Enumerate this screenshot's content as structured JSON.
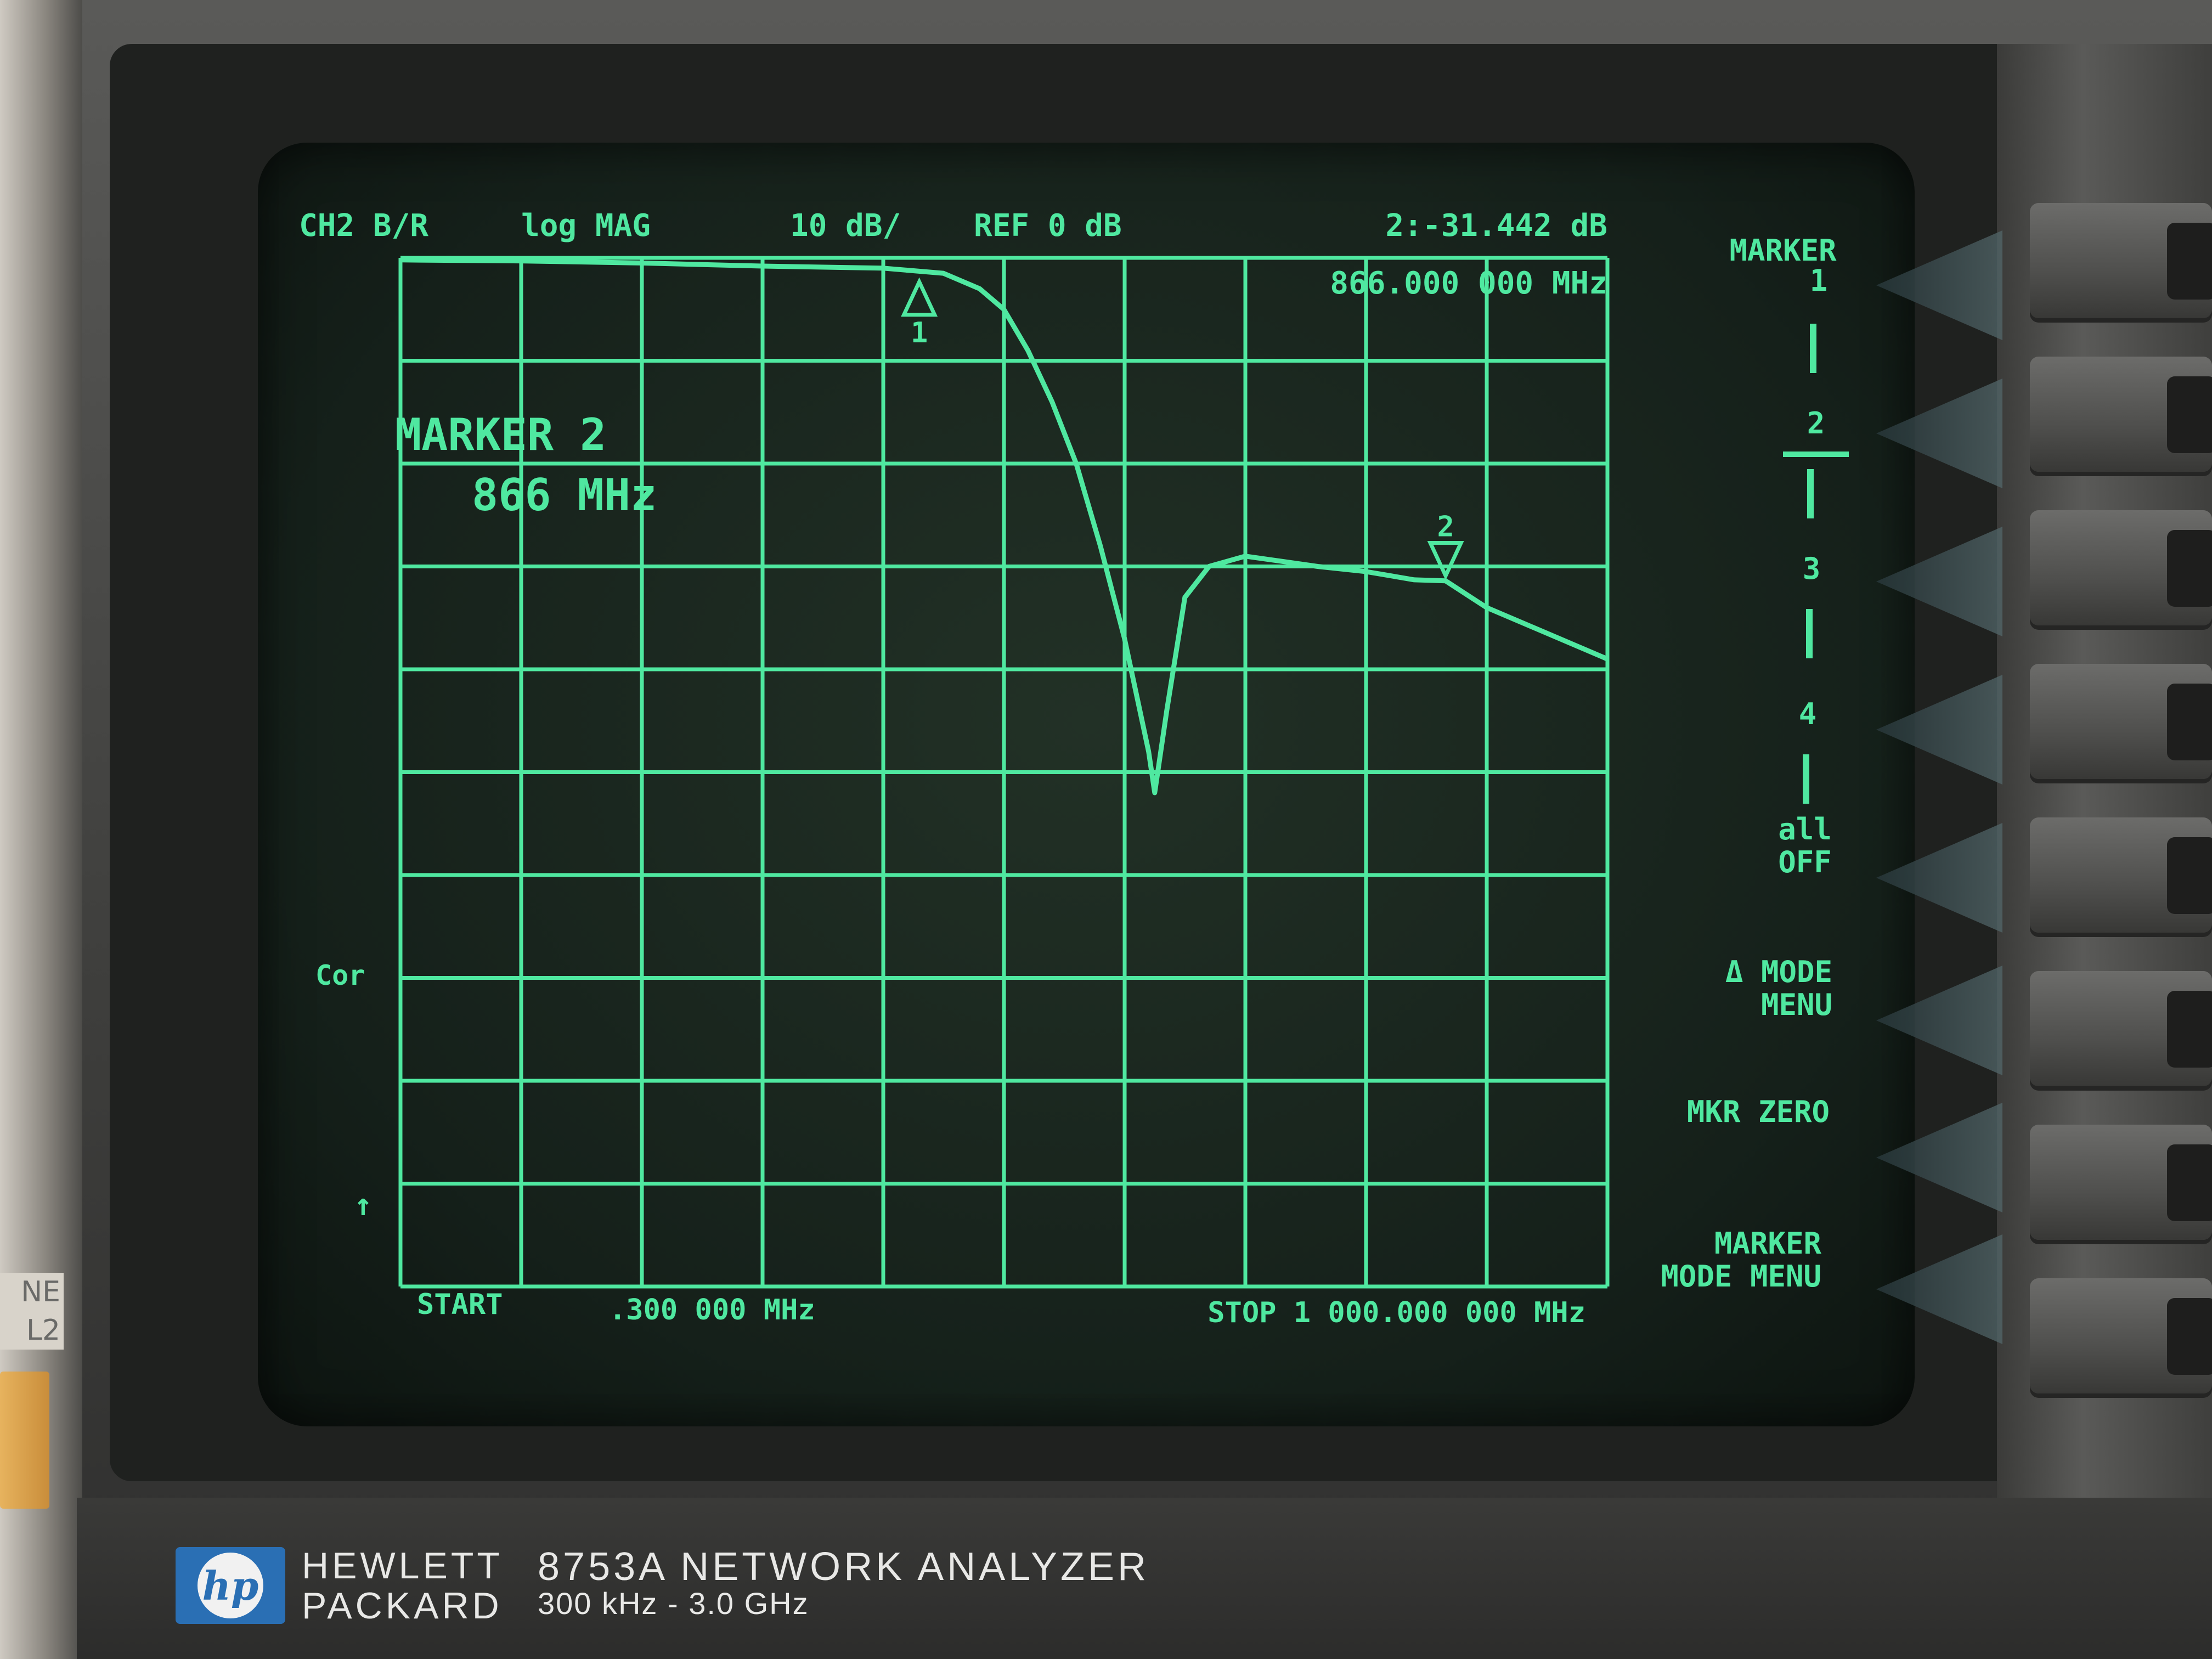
{
  "screen": {
    "channel": "CH2 B/R",
    "format": "log MAG",
    "scale": "10 dB/",
    "reference": "REF 0 dB",
    "marker_readout_value": "2:-31.442 dB",
    "marker_readout_freq": "866.000 000 MHz",
    "active_marker_title": "MARKER 2",
    "active_marker_freq": "866 MHz",
    "start_label": "START",
    "start_value": ".300 000 MHz",
    "stop_label": "STOP 1 000.000 000 MHz",
    "cor_label": "Cor",
    "marker1_label": "1",
    "marker2_label": "2"
  },
  "softkeys": {
    "k1_title": "MARKER",
    "k1_num": "1",
    "k2_num": "2",
    "k3_num": "3",
    "k4_num": "4",
    "k5_line1": "all",
    "k5_line2": "OFF",
    "k6_line1": "Δ MODE",
    "k6_line2": "MENU",
    "k7": "MKR ZERO",
    "k8_line1": "MARKER",
    "k8_line2": "MODE MENU"
  },
  "nameplate": {
    "logo": "hp",
    "brand_line1": "HEWLETT",
    "brand_line2": "PACKARD",
    "model": "8753A NETWORK ANALYZER",
    "range": "300 kHz - 3.0 GHz"
  },
  "left_panel": {
    "label_line1": "NE",
    "label_line2": "L2"
  },
  "colors": {
    "phosphor": "#4fe8a0",
    "crt_background": "#15201a",
    "hp_blue": "#2a6fb4"
  },
  "chart_data": {
    "type": "line",
    "xlabel": "",
    "ylabel": "",
    "xlim": [
      0.3,
      1000
    ],
    "ylim": [
      -100,
      0
    ],
    "x_unit": "MHz",
    "y_unit": "dB",
    "grid": true,
    "series": [
      {
        "x": [
          0.3,
          100,
          200,
          300,
          400,
          450,
          480,
          500,
          520,
          540,
          560,
          580,
          600,
          620,
          625,
          635,
          650,
          670,
          700,
          730,
          760,
          800,
          840,
          866,
          900,
          940,
          980,
          1000
        ],
        "values": [
          -0.2,
          -0.3,
          -0.5,
          -0.8,
          -1,
          -1.5,
          -3,
          -5,
          -9,
          -14,
          -20,
          -28,
          -37,
          -48,
          -52,
          -44,
          -33,
          -30,
          -29,
          -29.5,
          -30,
          -30.5,
          -31.3,
          -31.4,
          -34,
          -36,
          -38,
          -39
        ]
      }
    ],
    "markers": [
      {
        "label": "1",
        "x": 430,
        "y": -1
      },
      {
        "label": "2",
        "x": 866,
        "y": -31.442
      }
    ]
  }
}
